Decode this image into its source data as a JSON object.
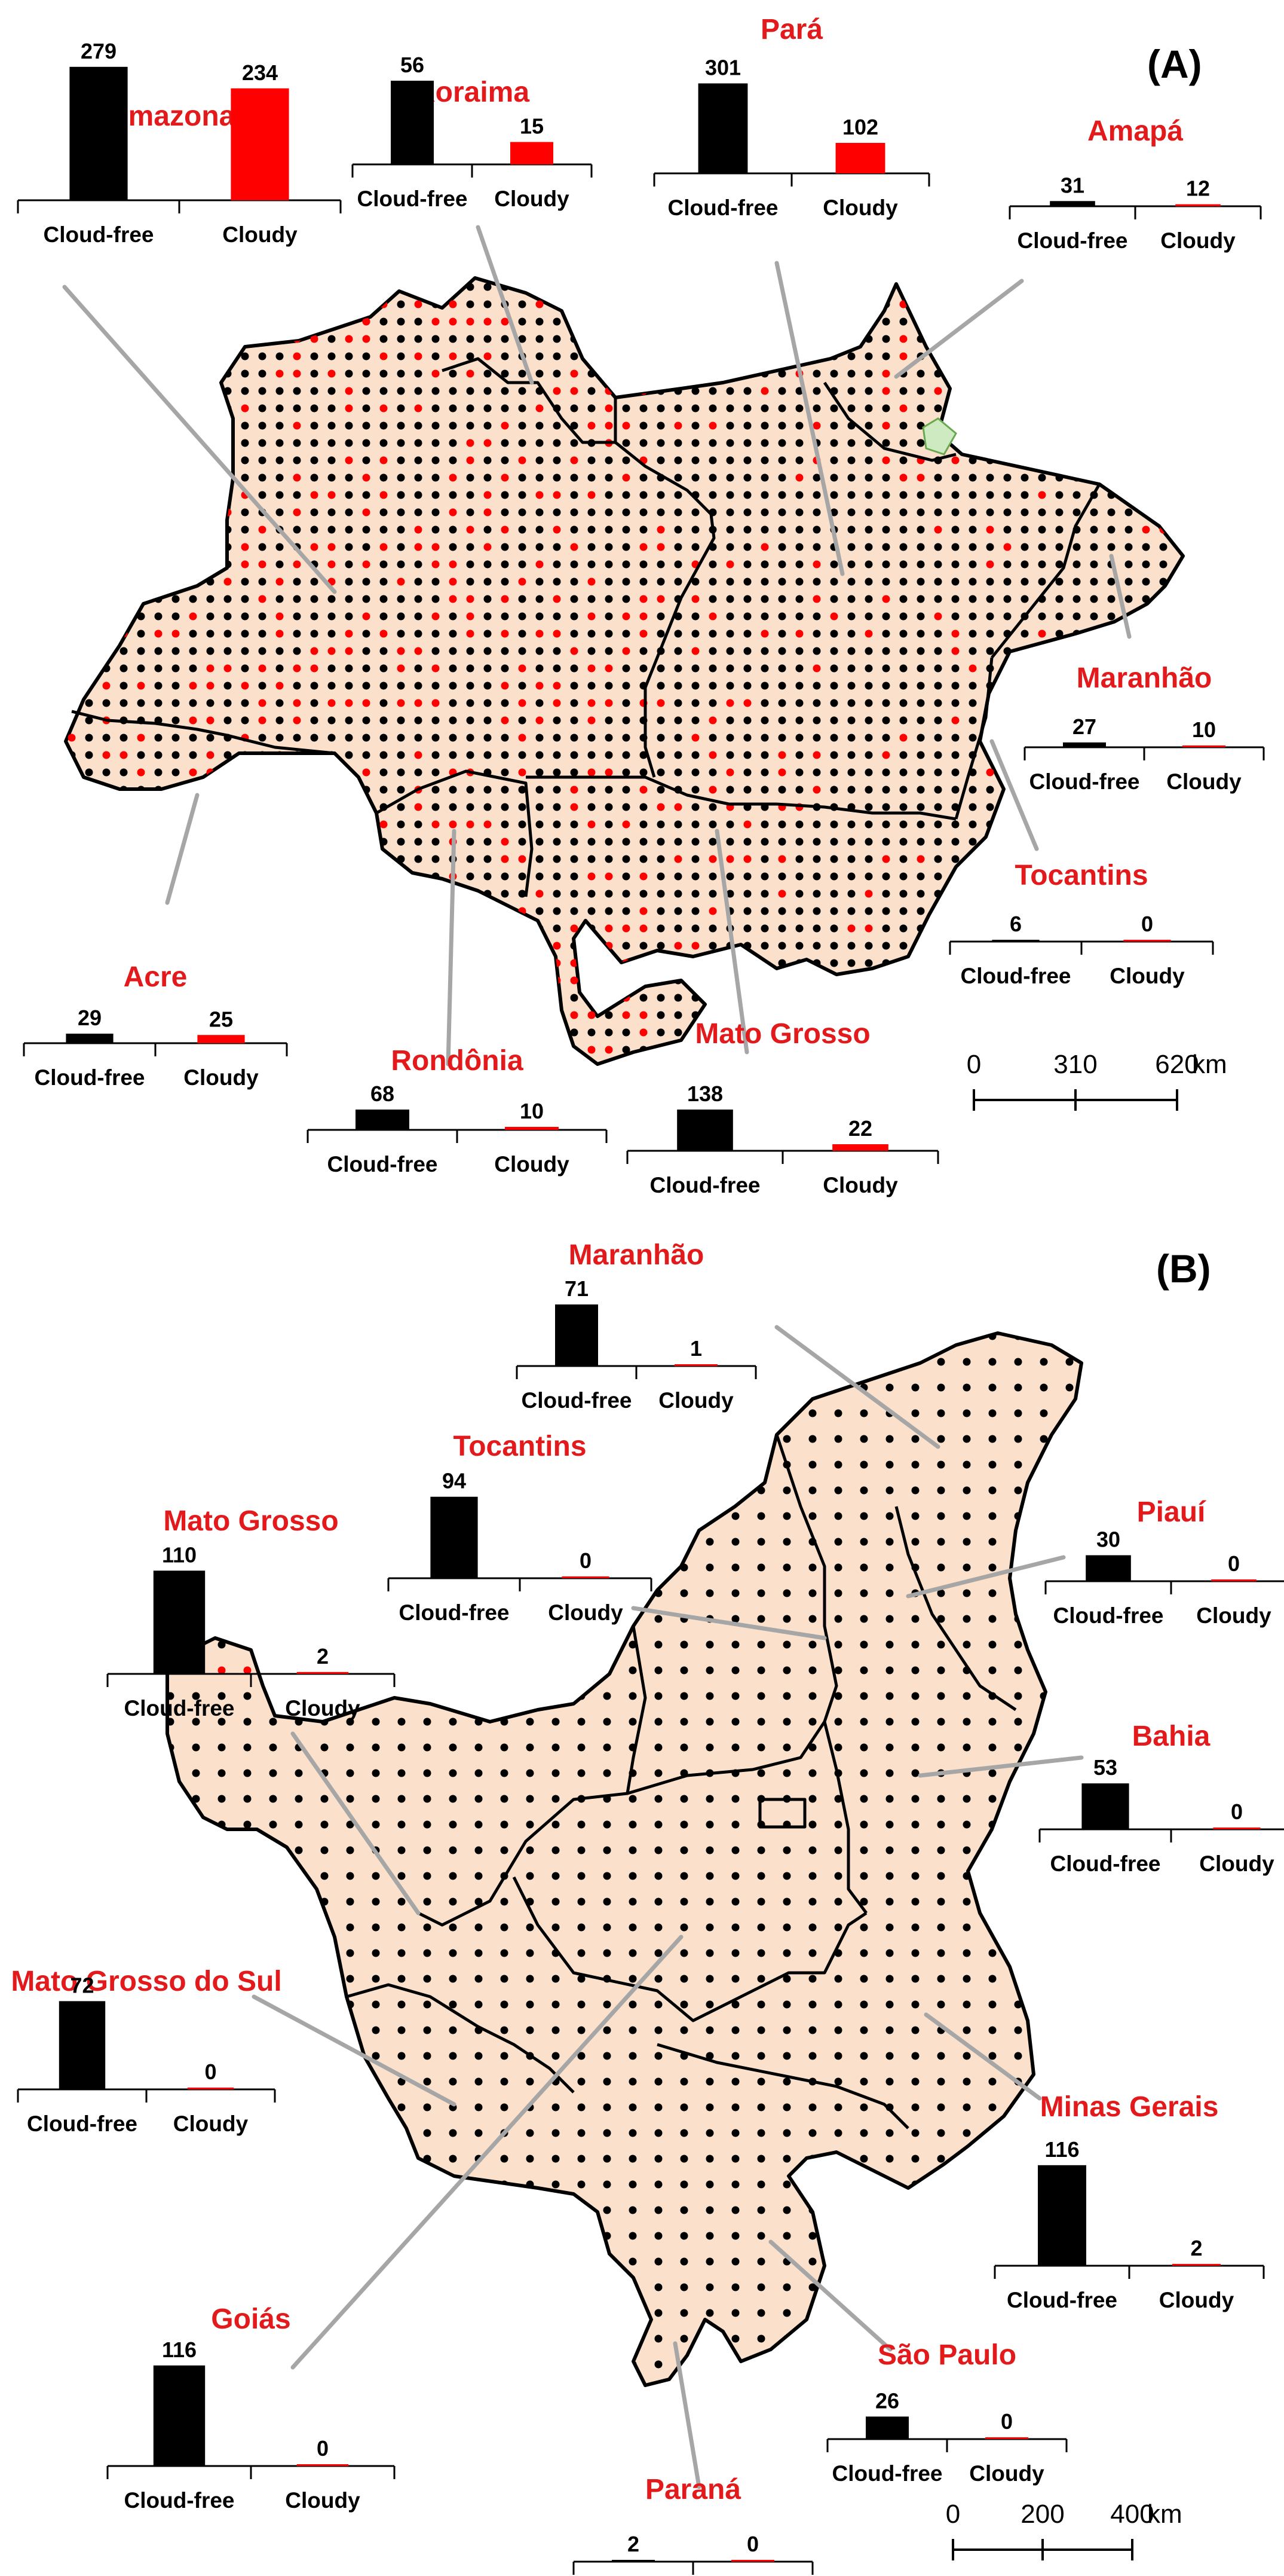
{
  "colors": {
    "region_fill": "#fbe1cb",
    "cloud_free": "#000000",
    "cloudy": "#ff0000",
    "label": "#e31a1c",
    "leader": "#a6a6a6"
  },
  "panels": [
    {
      "tag": "(A)",
      "scale": {
        "ticks": [
          "0",
          "310",
          "620"
        ],
        "unit": "km"
      },
      "categories": [
        "Cloud-free",
        "Cloudy"
      ],
      "states": [
        {
          "name": "Amazonas",
          "cloud_free": 279,
          "cloudy": 234
        },
        {
          "name": "Roraima",
          "cloud_free": 56,
          "cloudy": 15
        },
        {
          "name": "Pará",
          "cloud_free": 301,
          "cloudy": 102
        },
        {
          "name": "Amapá",
          "cloud_free": 31,
          "cloudy": 12
        },
        {
          "name": "Maranhão",
          "cloud_free": 27,
          "cloudy": 10
        },
        {
          "name": "Tocantins",
          "cloud_free": 6,
          "cloudy": 0
        },
        {
          "name": "Acre",
          "cloud_free": 29,
          "cloudy": 25
        },
        {
          "name": "Rondônia",
          "cloud_free": 68,
          "cloudy": 10
        },
        {
          "name": "Mato Grosso",
          "cloud_free": 138,
          "cloudy": 22
        }
      ]
    },
    {
      "tag": "(B)",
      "scale": {
        "ticks": [
          "0",
          "200",
          "400"
        ],
        "unit": "km"
      },
      "categories": [
        "Cloud-free",
        "Cloudy"
      ],
      "states": [
        {
          "name": "Maranhão",
          "cloud_free": 71,
          "cloudy": 1
        },
        {
          "name": "Tocantins",
          "cloud_free": 94,
          "cloudy": 0
        },
        {
          "name": "Mato Grosso",
          "cloud_free": 110,
          "cloudy": 2
        },
        {
          "name": "Piauí",
          "cloud_free": 30,
          "cloudy": 0
        },
        {
          "name": "Bahia",
          "cloud_free": 53,
          "cloudy": 0
        },
        {
          "name": "Mato Grosso do Sul",
          "cloud_free": 72,
          "cloudy": 0
        },
        {
          "name": "Minas Gerais",
          "cloud_free": 116,
          "cloudy": 2
        },
        {
          "name": "Goiás",
          "cloud_free": 116,
          "cloudy": 0
        },
        {
          "name": "São Paulo",
          "cloud_free": 26,
          "cloudy": 0
        },
        {
          "name": "Paraná",
          "cloud_free": 2,
          "cloudy": 0
        }
      ]
    }
  ]
}
